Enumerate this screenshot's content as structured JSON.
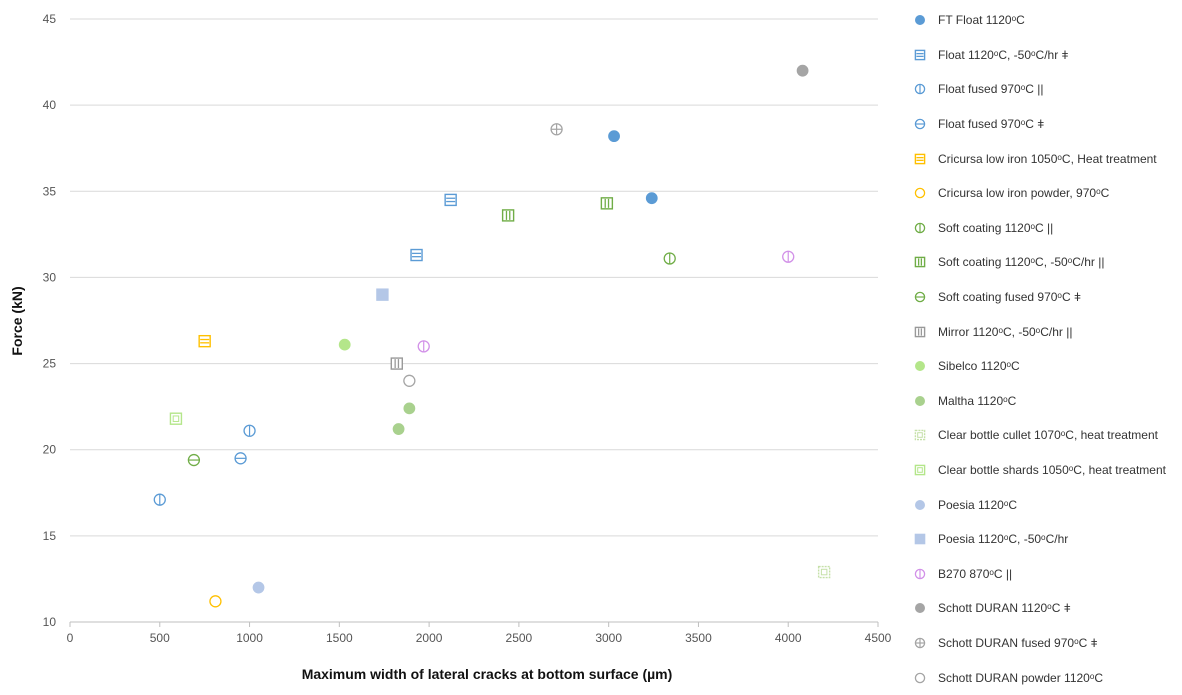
{
  "chart_data": {
    "type": "scatter",
    "title": "",
    "xlabel": "Maximum width of lateral cracks at bottom surface (µm)",
    "ylabel": "Force (kN)",
    "xlim": [
      0,
      4500
    ],
    "ylim": [
      10,
      45
    ],
    "xticks": [
      0,
      500,
      1000,
      1500,
      2000,
      2500,
      3000,
      3500,
      4000,
      4500
    ],
    "yticks": [
      10,
      15,
      20,
      25,
      30,
      35,
      40,
      45
    ],
    "grid": "horizontal",
    "legend_position": "right",
    "series": [
      {
        "name": "FT Float 1120ᵒC",
        "color": "#5b9bd5",
        "marker": "circle-filled",
        "points": [
          [
            3030,
            38.2
          ],
          [
            3240,
            34.6
          ]
        ]
      },
      {
        "name": "Float 1120ᵒC,  -50ᵒC/hr ǂ",
        "color": "#5b9bd5",
        "marker": "square-hlines",
        "points": [
          [
            2120,
            34.5
          ],
          [
            1930,
            31.3
          ]
        ]
      },
      {
        "name": "Float fused 970ᵒC ||",
        "color": "#5b9bd5",
        "marker": "circle-vline",
        "points": [
          [
            500,
            17.1
          ],
          [
            1000,
            21.1
          ]
        ]
      },
      {
        "name": "Float fused 970ᵒC ǂ",
        "color": "#5b9bd5",
        "marker": "circle-hline",
        "points": [
          [
            950,
            19.5
          ]
        ]
      },
      {
        "name": "Cricursa low iron 1050ᵒC, Heat treatment",
        "color": "#ffc000",
        "marker": "square-hlines",
        "points": [
          [
            750,
            26.3
          ]
        ]
      },
      {
        "name": "Cricursa low iron powder, 970ᵒC",
        "color": "#ffc000",
        "marker": "circle-open",
        "points": [
          [
            810,
            11.2
          ]
        ]
      },
      {
        "name": "Soft coating 1120ᵒC ||",
        "color": "#70ad47",
        "marker": "circle-vline",
        "points": [
          [
            3340,
            31.1
          ]
        ]
      },
      {
        "name": "Soft coating 1120ᵒC, -50ᵒC/hr ||",
        "color": "#70ad47",
        "marker": "square-vlines",
        "points": [
          [
            2440,
            33.6
          ],
          [
            2990,
            34.3
          ]
        ]
      },
      {
        "name": "Soft coating fused 970ᵒC ǂ",
        "color": "#70ad47",
        "marker": "circle-hline",
        "points": [
          [
            690,
            19.4
          ]
        ]
      },
      {
        "name": "Mirror 1120ᵒC, -50ᵒC/hr ||",
        "color": "#999999",
        "marker": "square-vlines",
        "points": [
          [
            1820,
            25.0
          ]
        ]
      },
      {
        "name": "Sibelco 1120ᵒC",
        "color": "#b4e68a",
        "marker": "circle-filled",
        "points": [
          [
            1530,
            26.1
          ]
        ]
      },
      {
        "name": "Maltha 1120ᵒC",
        "color": "#a9d18e",
        "marker": "circle-filled",
        "points": [
          [
            1830,
            21.2
          ],
          [
            1890,
            22.4
          ]
        ]
      },
      {
        "name": "Clear bottle cullet 1070ᵒC, heat treatment",
        "color": "#c5e0a8",
        "marker": "square-dotted",
        "points": [
          [
            4200,
            12.9
          ]
        ]
      },
      {
        "name": "Clear bottle shards 1050ᵒC, heat treatment",
        "color": "#b4e68a",
        "marker": "square-inner",
        "points": [
          [
            590,
            21.8
          ]
        ]
      },
      {
        "name": "Poesia 1120ᵒC",
        "color": "#b4c7e7",
        "marker": "circle-filled",
        "points": [
          [
            1050,
            12.0
          ]
        ]
      },
      {
        "name": "Poesia 1120ᵒC, -50ᵒC/hr",
        "color": "#b4c7e7",
        "marker": "square-filled",
        "points": [
          [
            1740,
            29.0
          ]
        ]
      },
      {
        "name": "B270 870ᵒC ||",
        "color": "#d291e8",
        "marker": "circle-vline",
        "points": [
          [
            1970,
            26.0
          ],
          [
            4000,
            31.2
          ]
        ]
      },
      {
        "name": "Schott DURAN 1120ᵒC ǂ",
        "color": "#a5a5a5",
        "marker": "circle-filled",
        "points": [
          [
            4080,
            42.0
          ]
        ]
      },
      {
        "name": "Schott DURAN fused 970ᵒC ǂ",
        "color": "#a5a5a5",
        "marker": "circle-cross",
        "points": [
          [
            2710,
            38.6
          ]
        ]
      },
      {
        "name": "Schott DURAN powder 1120ᵒC",
        "color": "#a5a5a5",
        "marker": "circle-open",
        "points": [
          [
            1890,
            24.0
          ]
        ]
      }
    ]
  }
}
